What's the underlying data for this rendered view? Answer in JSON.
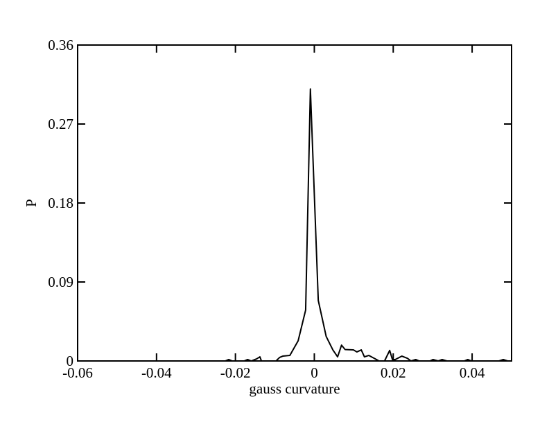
{
  "chart_data": {
    "type": "line",
    "xlabel": "gauss curvature",
    "ylabel": "P",
    "x": [
      -0.0226,
      -0.0217,
      -0.0208,
      -0.0178,
      -0.0169,
      -0.016,
      -0.0146,
      -0.0138,
      -0.0134,
      -0.0097,
      -0.0088,
      -0.008,
      -0.0062,
      -0.0041,
      -0.0022,
      -0.001,
      0.001,
      0.003,
      0.0047,
      0.0059,
      0.0069,
      0.0078,
      0.0099,
      0.0108,
      0.0119,
      0.0127,
      0.0138,
      0.0152,
      0.0164,
      0.0178,
      0.0191,
      0.0198,
      0.0205,
      0.0222,
      0.0236,
      0.0245,
      0.0257,
      0.0266,
      0.0293,
      0.0301,
      0.0314,
      0.0324,
      0.0336,
      0.038,
      0.0389,
      0.0398,
      0.0468,
      0.0479,
      0.049
    ],
    "series": [
      {
        "color": "#000000",
        "values": [
          0,
          0.0016,
          0,
          0,
          0.0016,
          0,
          0.0024,
          0.0047,
          0,
          0,
          0.004,
          0.0055,
          0.0063,
          0.023,
          0.058,
          0.31,
          0.069,
          0.028,
          0.0126,
          0.0047,
          0.018,
          0.013,
          0.0126,
          0.0103,
          0.0126,
          0.0047,
          0.0063,
          0.003,
          0,
          0,
          0.012,
          0.0016,
          0.0016,
          0.0055,
          0.003,
          0,
          0.0016,
          0,
          0,
          0.0016,
          0,
          0.0016,
          0,
          0,
          0.0016,
          0,
          0,
          0.0016,
          0
        ]
      }
    ],
    "xlim": [
      -0.06,
      0.05
    ],
    "xticks": [
      -0.06,
      -0.04,
      -0.02,
      0,
      0.02,
      0.04
    ],
    "ylim": [
      0,
      0.36
    ],
    "yticks": [
      0,
      0.09,
      0.18,
      0.27,
      0.36
    ]
  }
}
